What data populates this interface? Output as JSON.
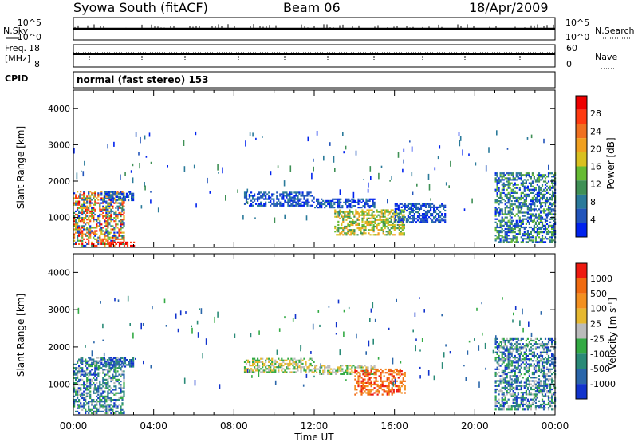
{
  "header": {
    "station": "Syowa South (fitACF)",
    "beam": "Beam 06",
    "date": "18/Apr/2009"
  },
  "top_panels": {
    "nsky_label": "N.Sky",
    "nsky_ticks": [
      "10^5",
      "10^0"
    ],
    "nsearch_label": "N.Search",
    "nsearch_ticks": [
      "10^5",
      "10^0"
    ],
    "freq_label_1": "Freq.",
    "freq_label_2": "[MHz]",
    "freq_ticks": [
      "18",
      "8"
    ],
    "nave_label": "Nave",
    "nave_ticks": [
      "60",
      "0"
    ],
    "cpid_label": "CPID",
    "cpid_value": "normal (fast stereo) 153"
  },
  "chart_data": [
    {
      "type": "heatmap",
      "name": "power",
      "xlabel": "Time UT",
      "ylabel": "Slant Range [km]",
      "xlim": [
        0,
        24
      ],
      "ylim": [
        180,
        4500
      ],
      "x_ticks": [
        "00:00",
        "04:00",
        "08:00",
        "12:00",
        "16:00",
        "20:00",
        "00:00"
      ],
      "y_ticks": [
        "1000",
        "2000",
        "3000",
        "4000"
      ],
      "colorbar_label": "Power [dB]",
      "colorbar_ticks": [
        "28",
        "24",
        "20",
        "16",
        "12",
        "8",
        "4"
      ],
      "colors": [
        "#0022ee",
        "#2255bb",
        "#2a7a9a",
        "#3f9055",
        "#66bb33",
        "#d9c020",
        "#f0a020",
        "#f07020",
        "#ff3a10",
        "#ee0000"
      ],
      "regions": [
        {
          "t": [
            0.0,
            2.5
          ],
          "r": [
            200,
            1700
          ],
          "level": "high_mixed"
        },
        {
          "t": [
            1.5,
            3.0
          ],
          "r": [
            1450,
            1700
          ],
          "level": "low"
        },
        {
          "t": [
            1.7,
            3.0
          ],
          "r": [
            200,
            330
          ],
          "level": "max"
        },
        {
          "t": [
            8.5,
            12.0
          ],
          "r": [
            1300,
            1700
          ],
          "level": "low"
        },
        {
          "t": [
            12.0,
            15.0
          ],
          "r": [
            1250,
            1500
          ],
          "level": "low"
        },
        {
          "t": [
            13.0,
            16.5
          ],
          "r": [
            500,
            1200
          ],
          "level": "mid"
        },
        {
          "t": [
            16.0,
            18.5
          ],
          "r": [
            850,
            1350
          ],
          "level": "low"
        },
        {
          "t": [
            21.0,
            24.0
          ],
          "r": [
            300,
            2200
          ],
          "level": "low_mixed"
        }
      ]
    },
    {
      "type": "heatmap",
      "name": "velocity",
      "xlabel": "Time UT",
      "ylabel": "Slant Range [km]",
      "xlim": [
        0,
        24
      ],
      "ylim": [
        180,
        4500
      ],
      "x_ticks": [
        "00:00",
        "04:00",
        "08:00",
        "12:00",
        "16:00",
        "20:00",
        "00:00"
      ],
      "y_ticks": [
        "1000",
        "2000",
        "3000",
        "4000"
      ],
      "colorbar_label": "Velocity [m s",
      "colorbar_label_sup": "-1",
      "colorbar_label_end": "]",
      "colorbar_ticks": [
        "1000",
        "500",
        "100",
        "25",
        "-25",
        "-100",
        "-500",
        "-1000"
      ],
      "colors": [
        "#1133cc",
        "#2a66aa",
        "#2a8a77",
        "#33aa44",
        "#bbbbbb",
        "#e6b830",
        "#f39020",
        "#f06a10",
        "#ee1a10"
      ],
      "regions": [
        {
          "t": [
            0.0,
            2.5
          ],
          "r": [
            200,
            1700
          ],
          "level": "toward_mixed"
        },
        {
          "t": [
            1.5,
            3.0
          ],
          "r": [
            1450,
            1700
          ],
          "level": "toward"
        },
        {
          "t": [
            8.5,
            12.0
          ],
          "r": [
            1300,
            1700
          ],
          "level": "near_zero"
        },
        {
          "t": [
            12.0,
            15.0
          ],
          "r": [
            1250,
            1500
          ],
          "level": "near_zero"
        },
        {
          "t": [
            14.0,
            16.5
          ],
          "r": [
            700,
            1400
          ],
          "level": "away"
        },
        {
          "t": [
            21.0,
            24.0
          ],
          "r": [
            300,
            2200
          ],
          "level": "toward_mixed"
        }
      ]
    }
  ]
}
